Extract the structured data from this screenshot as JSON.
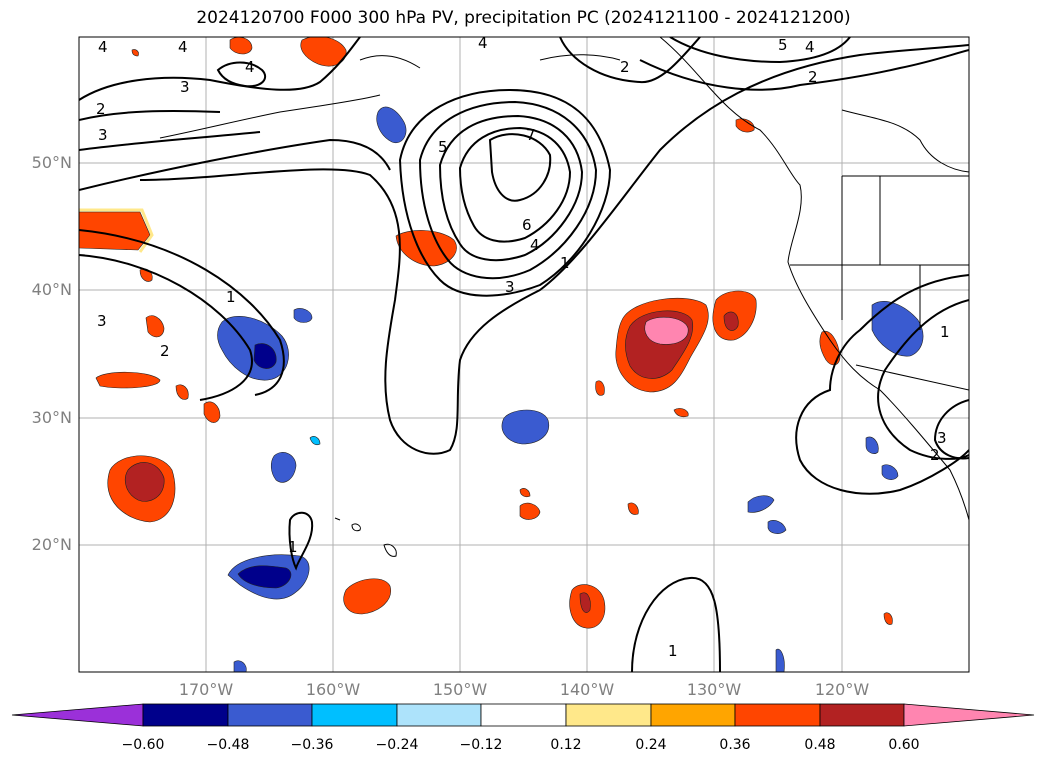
{
  "title": "2024120700 F000 300 hPa PV, precipitation PC (2024121100 - 2024121200)",
  "map": {
    "lat_labels": [
      "50°N",
      "40°N",
      "30°N",
      "20°N"
    ],
    "lon_labels": [
      "170°W",
      "160°W",
      "150°W",
      "140°W",
      "130°W",
      "120°W"
    ],
    "contour_labels": [
      "4",
      "4",
      "4",
      "4",
      "3",
      "2",
      "3",
      "2",
      "5",
      "4",
      "2",
      "5",
      "7",
      "6",
      "4",
      "3",
      "1",
      "1",
      "3",
      "2",
      "1",
      "3",
      "2",
      "1",
      "1"
    ]
  },
  "colorbar": {
    "tick_labels": [
      "−0.60",
      "−0.48",
      "−0.36",
      "−0.24",
      "−0.12",
      "0.12",
      "0.24",
      "0.36",
      "0.48",
      "0.60"
    ],
    "colors": [
      "#9b30d9",
      "#00008b",
      "#3a5bd0",
      "#00bfff",
      "#ade3fb",
      "#ffffff",
      "#ffe88a",
      "#ffa500",
      "#ff4500",
      "#b22222",
      "#ff85b0"
    ]
  }
}
